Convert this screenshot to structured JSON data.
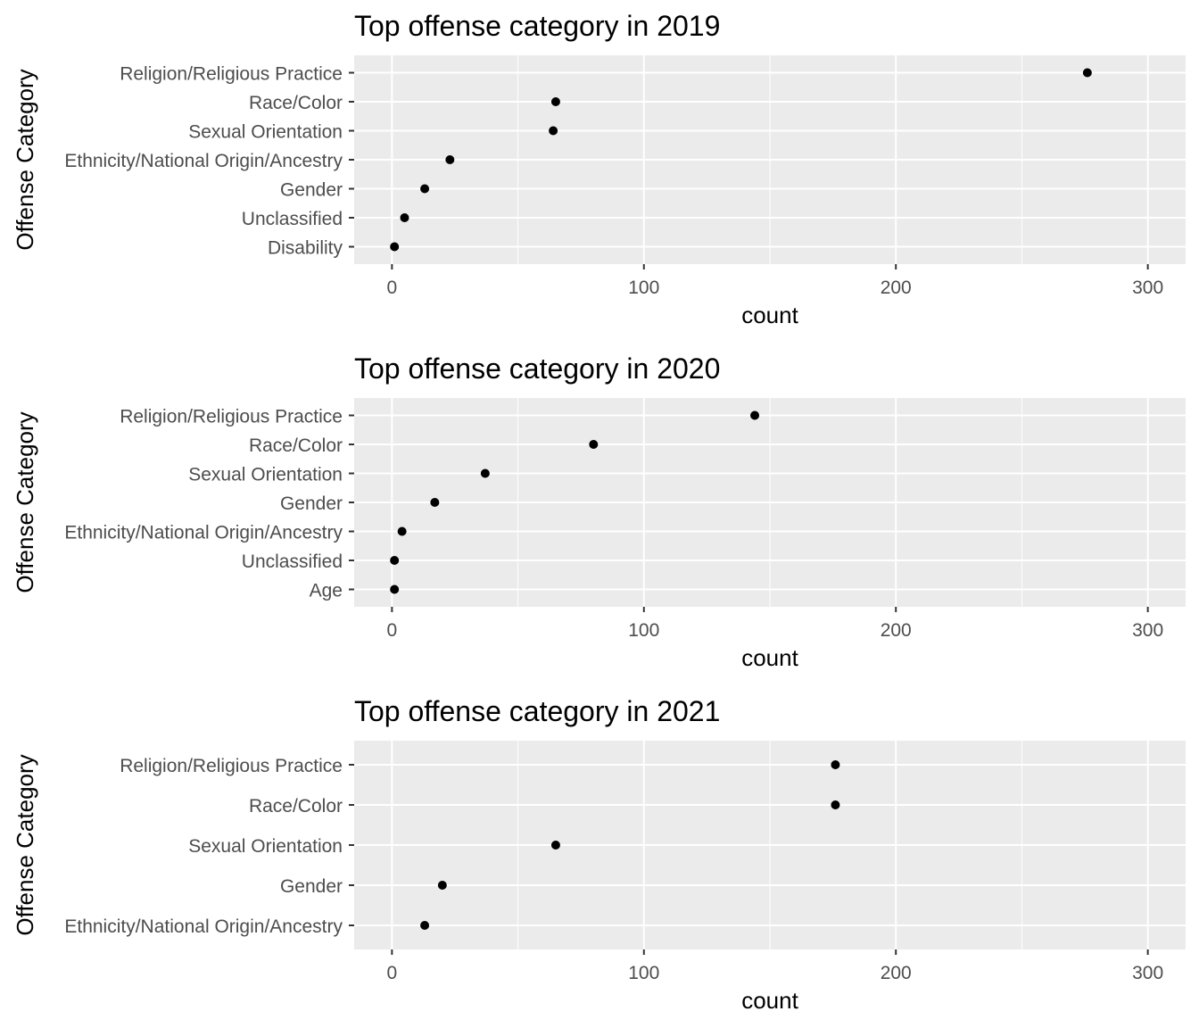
{
  "chart_data": [
    {
      "type": "scatter",
      "title": "Top offense category in 2019",
      "xlabel": "count",
      "ylabel": "Offense Category",
      "xlim": [
        -15,
        315
      ],
      "xticks": [
        0,
        100,
        200,
        300
      ],
      "tick_labels": [
        "0",
        "100",
        "200",
        "300"
      ],
      "grid": true,
      "legend": "none",
      "point_color": "#000000",
      "panel_color": "#ebebeb",
      "categories": [
        "Religion/Religious Practice",
        "Race/Color",
        "Sexual Orientation",
        "Ethnicity/National Origin/Ancestry",
        "Gender",
        "Unclassified",
        "Disability"
      ],
      "values": [
        276,
        65,
        64,
        23,
        13,
        5,
        1
      ]
    },
    {
      "type": "scatter",
      "title": "Top offense category in 2020",
      "xlabel": "count",
      "ylabel": "Offense Category",
      "xlim": [
        -15,
        315
      ],
      "xticks": [
        0,
        100,
        200,
        300
      ],
      "tick_labels": [
        "0",
        "100",
        "200",
        "300"
      ],
      "grid": true,
      "legend": "none",
      "point_color": "#000000",
      "panel_color": "#ebebeb",
      "categories": [
        "Religion/Religious Practice",
        "Race/Color",
        "Sexual Orientation",
        "Gender",
        "Ethnicity/National Origin/Ancestry",
        "Unclassified",
        "Age"
      ],
      "values": [
        144,
        80,
        37,
        17,
        4,
        1,
        1
      ]
    },
    {
      "type": "scatter",
      "title": "Top offense category in 2021",
      "xlabel": "count",
      "ylabel": "Offense Category",
      "xlim": [
        -15,
        315
      ],
      "xticks": [
        0,
        100,
        200,
        300
      ],
      "tick_labels": [
        "0",
        "100",
        "200",
        "300"
      ],
      "grid": true,
      "legend": "none",
      "point_color": "#000000",
      "panel_color": "#ebebeb",
      "categories": [
        "Religion/Religious Practice",
        "Race/Color",
        "Sexual Orientation",
        "Gender",
        "Ethnicity/National Origin/Ancestry"
      ],
      "values": [
        176,
        176,
        65,
        20,
        13
      ]
    }
  ]
}
